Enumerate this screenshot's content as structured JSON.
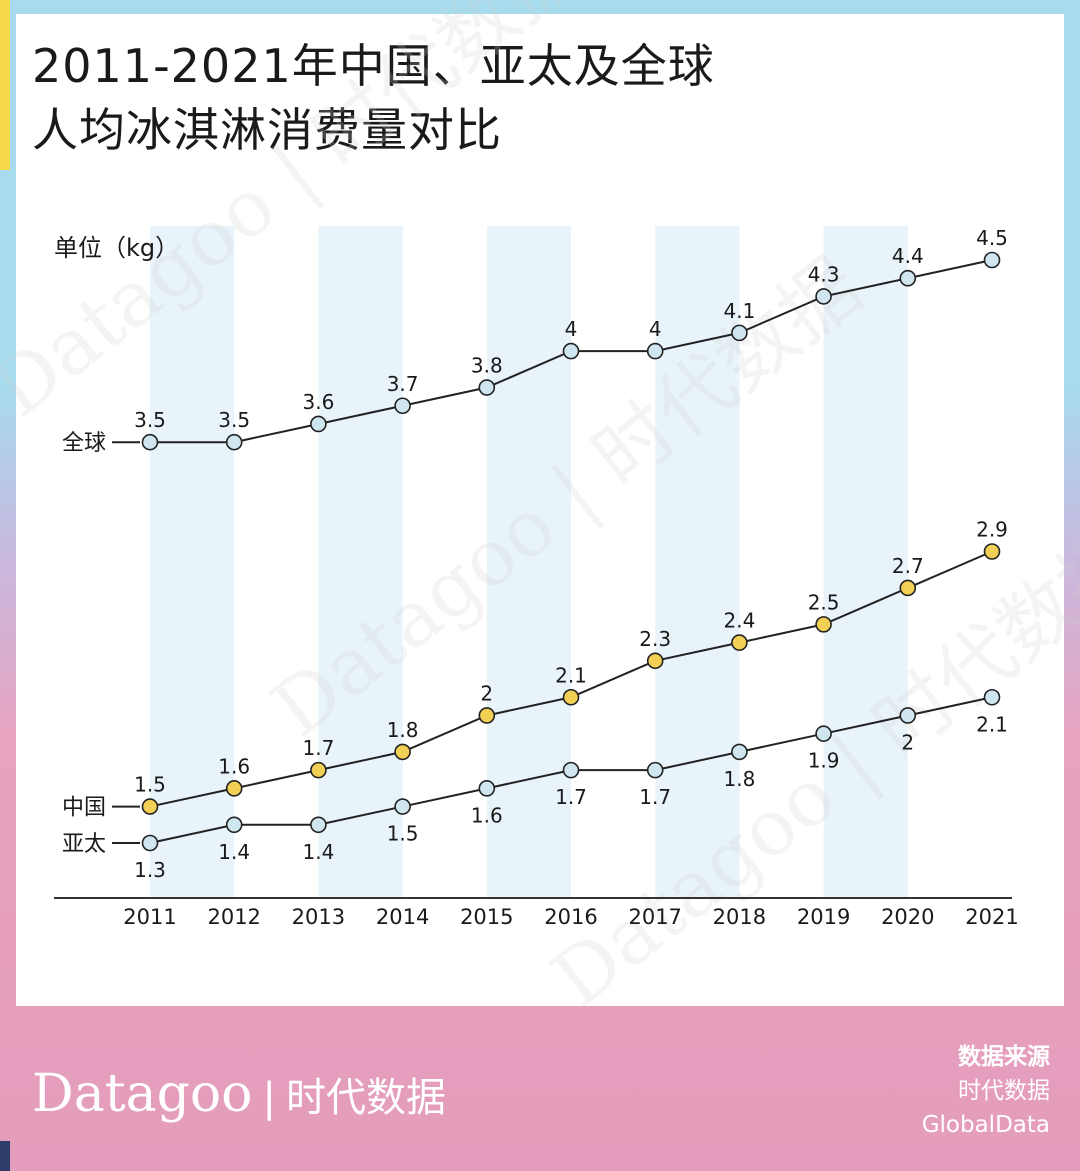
{
  "title": {
    "line1": "2011-2021年中国、亚太及全球",
    "line2": "人均冰淇淋消费量对比"
  },
  "chart_data": {
    "type": "line",
    "title": "2011-2021年中国、亚太及全球人均冰淇淋消费量对比",
    "unit_label": "单位（kg）",
    "categories": [
      "2011",
      "2012",
      "2013",
      "2014",
      "2015",
      "2016",
      "2017",
      "2018",
      "2019",
      "2020",
      "2021"
    ],
    "series": [
      {
        "name": "全球",
        "values": [
          3.5,
          3.5,
          3.6,
          3.7,
          3.8,
          4,
          4,
          4.1,
          4.3,
          4.4,
          4.5
        ],
        "color": "#cfe6f0",
        "label_pos": "above"
      },
      {
        "name": "中国",
        "values": [
          1.5,
          1.6,
          1.7,
          1.8,
          2,
          2.1,
          2.3,
          2.4,
          2.5,
          2.7,
          2.9
        ],
        "color": "#f2cf55",
        "label_pos": "above"
      },
      {
        "name": "亚太",
        "values": [
          1.3,
          1.4,
          1.4,
          1.5,
          1.6,
          1.7,
          1.7,
          1.8,
          1.9,
          2,
          2.1
        ],
        "color": "#cfe6f0",
        "label_pos": "below"
      }
    ],
    "ylim": [
      0.8,
      4.7
    ],
    "grid": false,
    "stripe_color": "#e8f4fa"
  },
  "watermark": {
    "text": "Datagoo | 时代数据"
  },
  "footer": {
    "brand": "Datagoo",
    "separator": "|",
    "brand_cn": "时代数据",
    "source_title": "数据来源",
    "source_line1": "时代数据",
    "source_line2": "GlobalData"
  },
  "colors": {
    "top_band": "#a6dcee",
    "bottom_band": "#e49dbc",
    "accent_yellow": "#f6d84a",
    "accent_navy": "#2f3d6a",
    "line": "#222222"
  }
}
